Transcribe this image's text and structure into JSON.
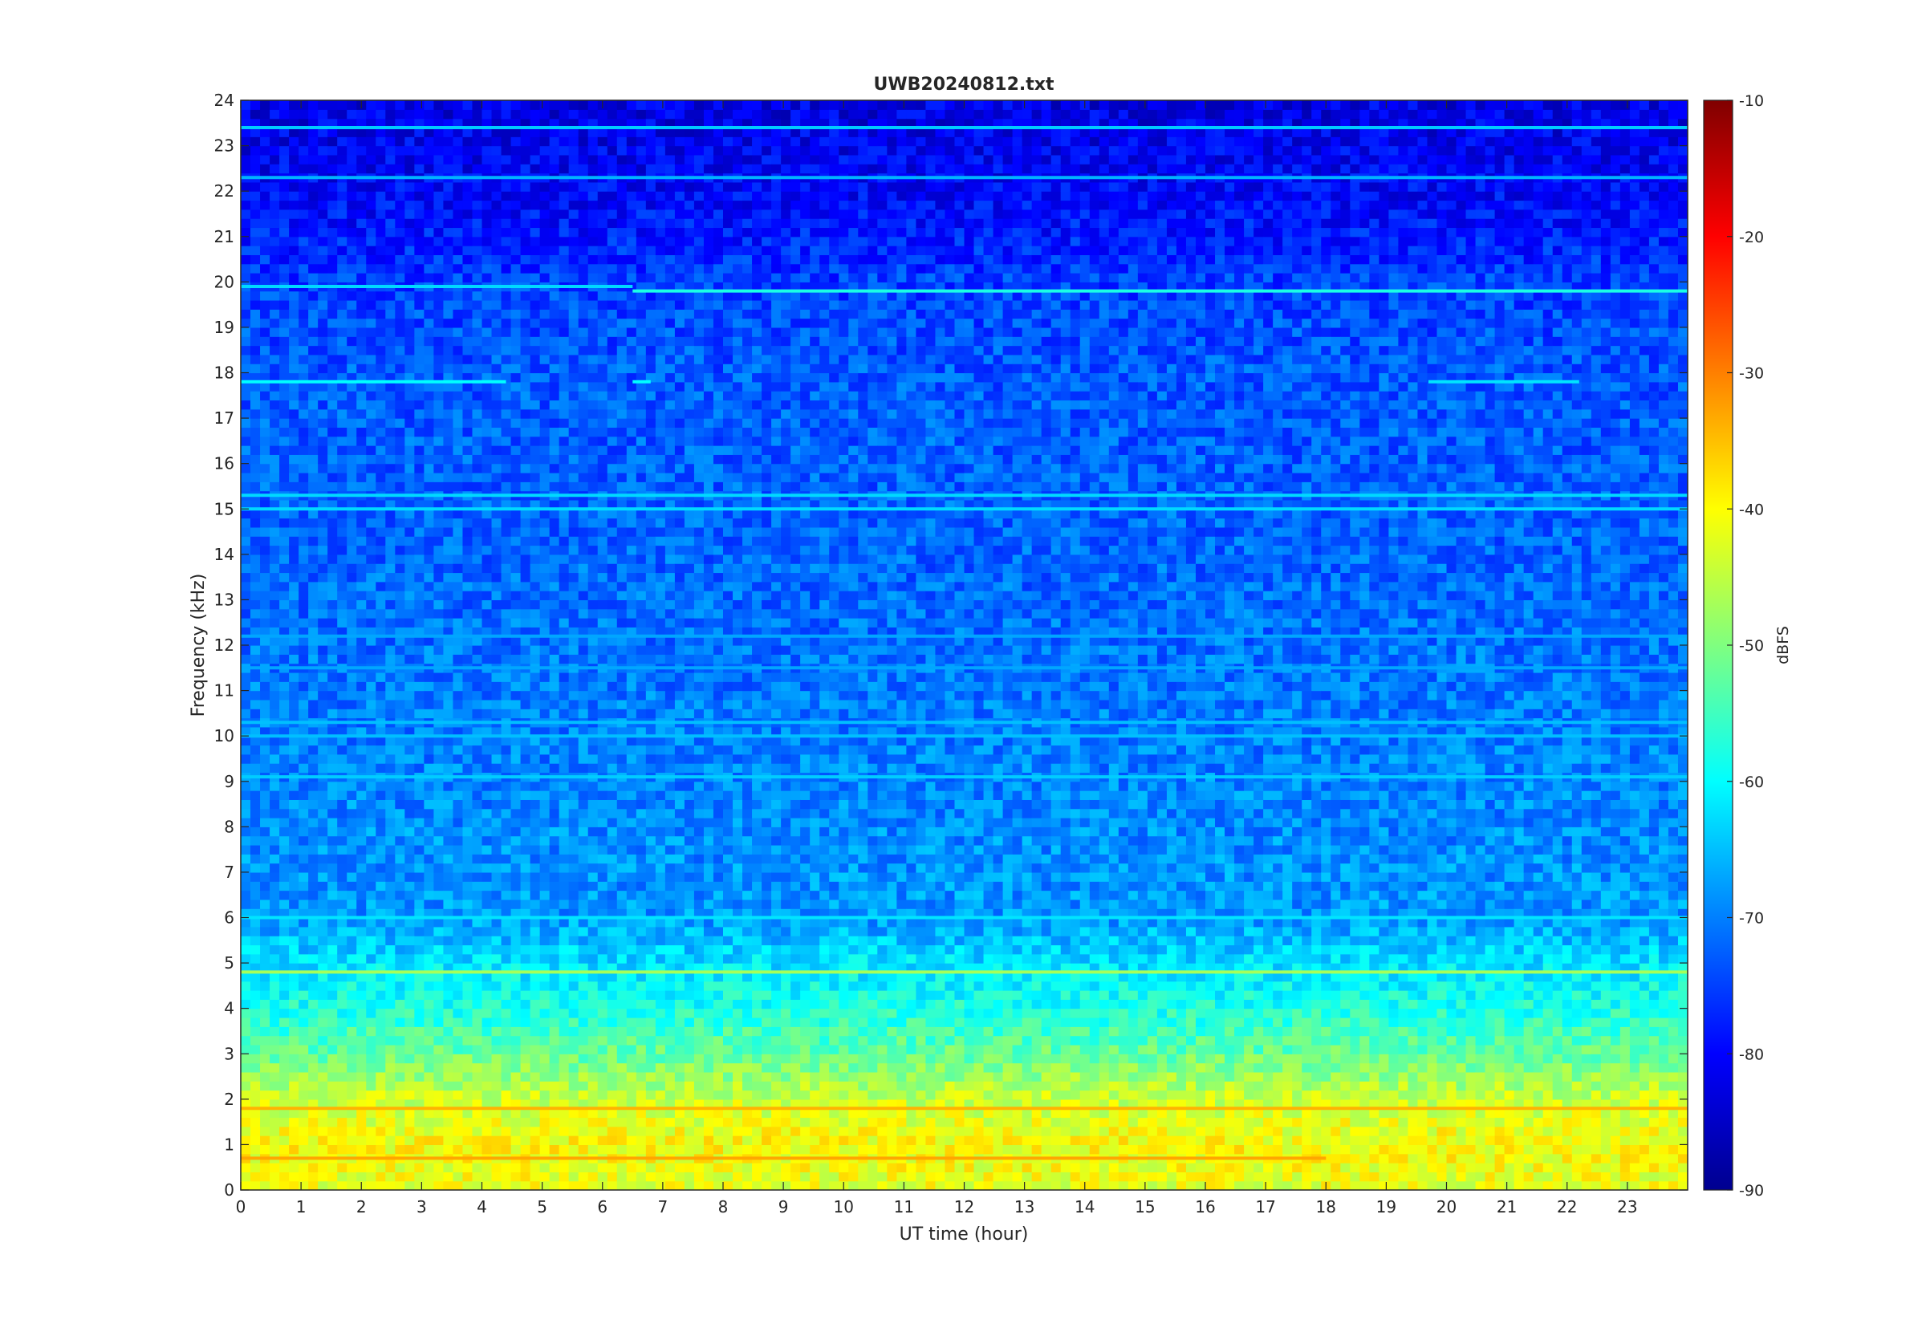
{
  "chart_data": {
    "type": "heatmap",
    "title": "UWB20240812.txt",
    "xlabel": "UT time (hour)",
    "ylabel": "Frequency (kHz)",
    "xlim": [
      0,
      24
    ],
    "ylim": [
      0,
      24
    ],
    "x_ticks": [
      0,
      1,
      2,
      3,
      4,
      5,
      6,
      7,
      8,
      9,
      10,
      11,
      12,
      13,
      14,
      15,
      16,
      17,
      18,
      19,
      20,
      21,
      22,
      23
    ],
    "y_ticks": [
      0,
      1,
      2,
      3,
      4,
      5,
      6,
      7,
      8,
      9,
      10,
      11,
      12,
      13,
      14,
      15,
      16,
      17,
      18,
      19,
      20,
      21,
      22,
      23,
      24
    ],
    "colorbar": {
      "label": "dBFS",
      "colormap": "jet",
      "range": [
        -90,
        -10
      ],
      "ticks": [
        -10,
        -20,
        -30,
        -40,
        -50,
        -60,
        -70,
        -80,
        -90
      ]
    },
    "grid": false,
    "background_level_dbfs": [
      {
        "freq_khz": 0,
        "level": -42
      },
      {
        "freq_khz": 1,
        "level": -40
      },
      {
        "freq_khz": 2,
        "level": -44
      },
      {
        "freq_khz": 3,
        "level": -52
      },
      {
        "freq_khz": 4,
        "level": -58
      },
      {
        "freq_khz": 5,
        "level": -62
      },
      {
        "freq_khz": 6,
        "level": -68
      },
      {
        "freq_khz": 8,
        "level": -69
      },
      {
        "freq_khz": 10,
        "level": -70
      },
      {
        "freq_khz": 14,
        "level": -72
      },
      {
        "freq_khz": 18,
        "level": -73
      },
      {
        "freq_khz": 20,
        "level": -75
      },
      {
        "freq_khz": 21,
        "level": -78
      },
      {
        "freq_khz": 22,
        "level": -80
      },
      {
        "freq_khz": 24,
        "level": -82
      }
    ],
    "tone_lines": [
      {
        "freq_khz": 19.8,
        "t_start": 6.5,
        "t_end": 24,
        "level": -58
      },
      {
        "freq_khz": 19.9,
        "t_start": 0,
        "t_end": 6.5,
        "level": -63
      },
      {
        "freq_khz": 17.8,
        "t_start": 0,
        "t_end": 4.4,
        "level": -60
      },
      {
        "freq_khz": 17.8,
        "t_start": 6.5,
        "t_end": 6.8,
        "level": -60
      },
      {
        "freq_khz": 17.8,
        "t_start": 19.7,
        "t_end": 22.2,
        "level": -62
      },
      {
        "freq_khz": 23.4,
        "t_start": 0,
        "t_end": 24,
        "level": -64
      },
      {
        "freq_khz": 22.3,
        "t_start": 0,
        "t_end": 24,
        "level": -66
      },
      {
        "freq_khz": 15.3,
        "t_start": 0,
        "t_end": 24,
        "level": -63
      },
      {
        "freq_khz": 15.0,
        "t_start": 0,
        "t_end": 24,
        "level": -63
      },
      {
        "freq_khz": 12.2,
        "t_start": 0,
        "t_end": 24,
        "level": -67
      },
      {
        "freq_khz": 11.5,
        "t_start": 0,
        "t_end": 24,
        "level": -67
      },
      {
        "freq_khz": 10.3,
        "t_start": 0,
        "t_end": 24,
        "level": -65
      },
      {
        "freq_khz": 10.0,
        "t_start": 0,
        "t_end": 24,
        "level": -65
      },
      {
        "freq_khz": 9.1,
        "t_start": 0,
        "t_end": 24,
        "level": -64
      },
      {
        "freq_khz": 6.0,
        "t_start": 0,
        "t_end": 24,
        "level": -62
      },
      {
        "freq_khz": 4.8,
        "t_start": 0,
        "t_end": 24,
        "level": -47
      },
      {
        "freq_khz": 1.8,
        "t_start": 0,
        "t_end": 24,
        "level": -34
      },
      {
        "freq_khz": 0.7,
        "t_start": 0,
        "t_end": 18,
        "level": -33
      }
    ]
  }
}
